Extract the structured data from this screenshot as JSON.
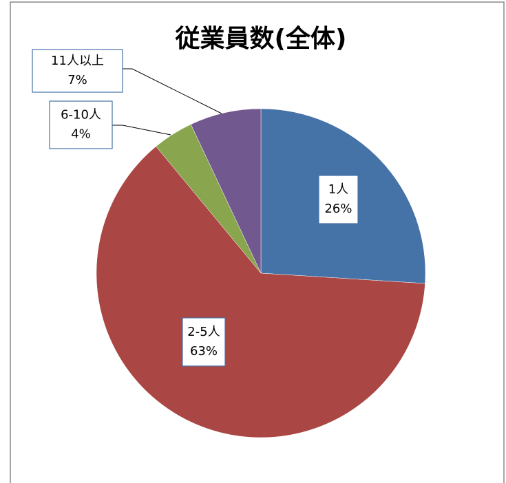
{
  "chart_data": {
    "type": "pie",
    "title": "従業員数(全体)",
    "categories": [
      "1人",
      "2-5人",
      "6-10人",
      "11人以上"
    ],
    "values": [
      26,
      63,
      4,
      7
    ],
    "value_labels": [
      "26%",
      "63%",
      "4%",
      "7%"
    ],
    "colors": [
      "#4572a7",
      "#aa4643",
      "#89a54e",
      "#71588f"
    ]
  }
}
